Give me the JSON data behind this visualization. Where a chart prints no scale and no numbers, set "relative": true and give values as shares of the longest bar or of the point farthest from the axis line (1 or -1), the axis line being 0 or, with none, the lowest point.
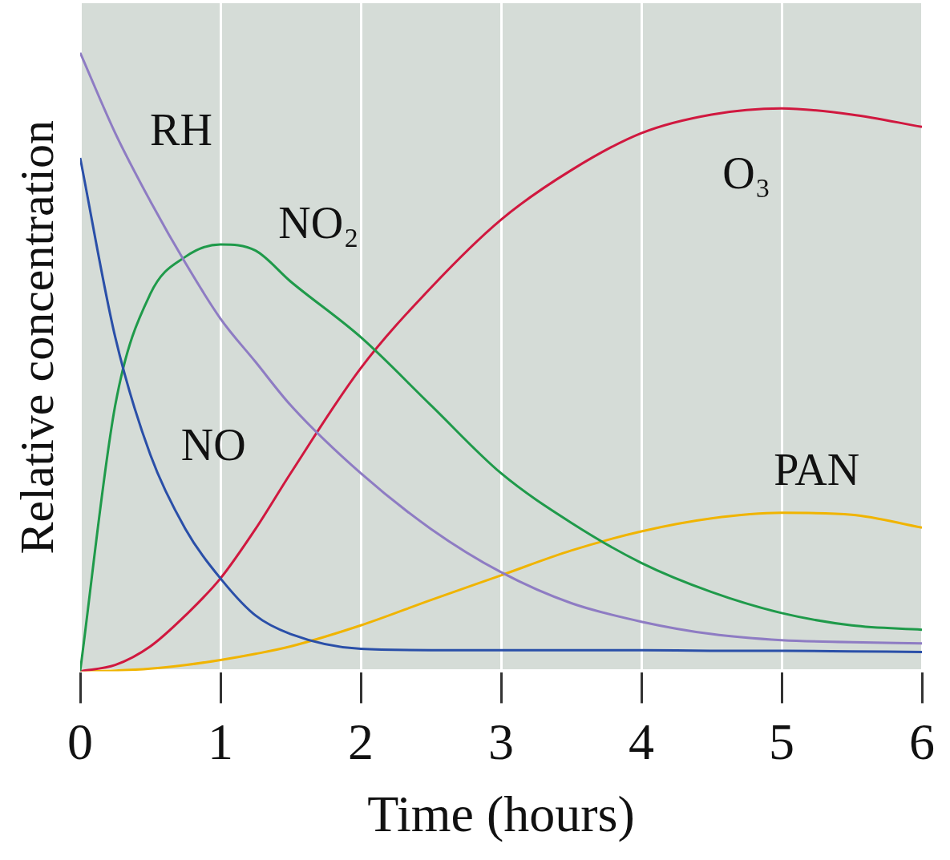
{
  "chart_data": {
    "type": "line",
    "xlabel": "Time (hours)",
    "ylabel": "Relative concentration",
    "relative": true,
    "x": [
      0,
      0.25,
      0.5,
      0.75,
      1,
      1.25,
      1.5,
      2,
      2.5,
      3,
      3.5,
      4,
      4.5,
      5,
      5.5,
      6
    ],
    "xlim": [
      0,
      6
    ],
    "xticks": [
      0,
      1,
      2,
      3,
      4,
      5,
      6
    ],
    "grid": "x",
    "legend": false,
    "tick_labels": "x",
    "marker": "none",
    "series": [
      {
        "name": "RH",
        "color": "#8e7cc3",
        "values": [
          1.0,
          0.87,
          0.76,
          0.66,
          0.57,
          0.5,
          0.43,
          0.32,
          0.23,
          0.16,
          0.11,
          0.08,
          0.06,
          0.05,
          0.047,
          0.045
        ]
      },
      {
        "name": "NO",
        "color": "#2a4fa8",
        "values": [
          0.83,
          0.54,
          0.35,
          0.23,
          0.15,
          0.09,
          0.06,
          0.036,
          0.034,
          0.034,
          0.034,
          0.034,
          0.033,
          0.033,
          0.032,
          0.031
        ]
      },
      {
        "name": "NO₂",
        "color": "#1f9a4a",
        "values": [
          0,
          0.43,
          0.61,
          0.67,
          0.69,
          0.68,
          0.63,
          0.54,
          0.43,
          0.32,
          0.24,
          0.175,
          0.128,
          0.094,
          0.074,
          0.067
        ]
      },
      {
        "name": "O₃",
        "color": "#d0183f",
        "values": [
          0,
          0.01,
          0.04,
          0.09,
          0.15,
          0.23,
          0.32,
          0.49,
          0.62,
          0.73,
          0.81,
          0.87,
          0.9,
          0.91,
          0.9,
          0.88
        ]
      },
      {
        "name": "PAN",
        "color": "#f0b400",
        "values": [
          0,
          0.001,
          0.004,
          0.01,
          0.018,
          0.028,
          0.04,
          0.074,
          0.115,
          0.155,
          0.195,
          0.226,
          0.247,
          0.256,
          0.253,
          0.232
        ]
      }
    ]
  }
}
